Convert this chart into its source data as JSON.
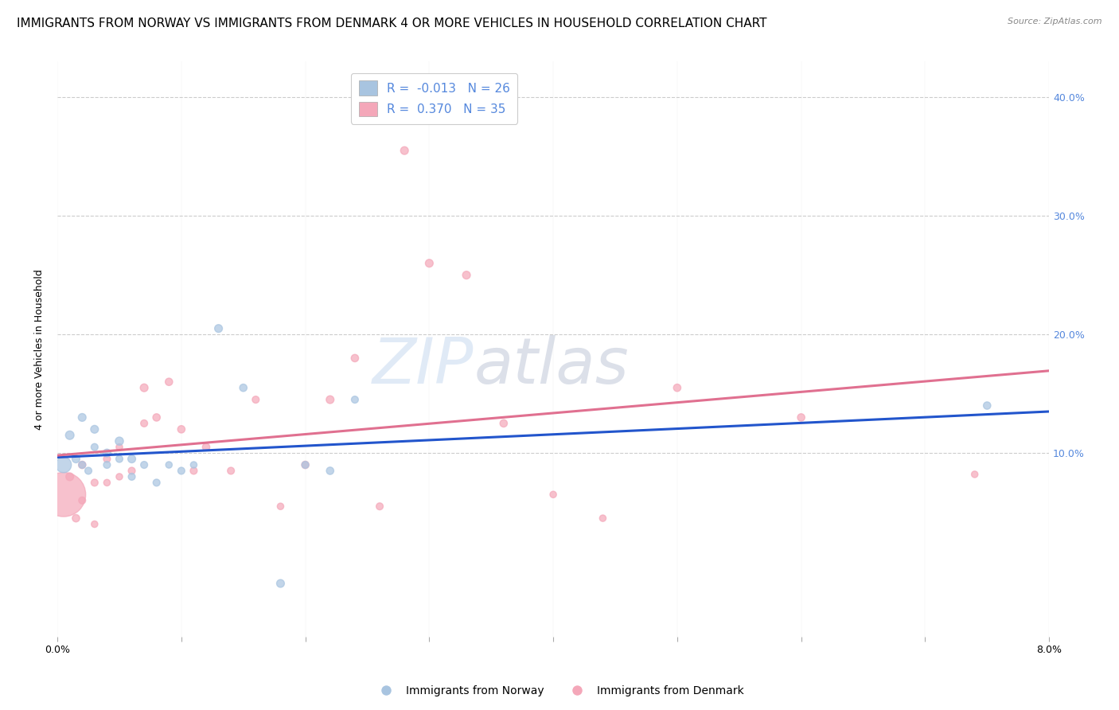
{
  "title": "IMMIGRANTS FROM NORWAY VS IMMIGRANTS FROM DENMARK 4 OR MORE VEHICLES IN HOUSEHOLD CORRELATION CHART",
  "source": "Source: ZipAtlas.com",
  "ylabel": "4 or more Vehicles in Household",
  "xlim": [
    0.0,
    0.08
  ],
  "ylim": [
    -0.055,
    0.43
  ],
  "norway_R": -0.013,
  "norway_N": 26,
  "denmark_R": 0.37,
  "denmark_N": 35,
  "norway_color": "#a8c4e0",
  "denmark_color": "#f4a7b9",
  "norway_line_color": "#2255cc",
  "denmark_line_color": "#e07090",
  "norway_x": [
    0.0005,
    0.001,
    0.0015,
    0.002,
    0.002,
    0.0025,
    0.003,
    0.003,
    0.004,
    0.004,
    0.005,
    0.005,
    0.006,
    0.006,
    0.007,
    0.008,
    0.009,
    0.01,
    0.011,
    0.013,
    0.015,
    0.018,
    0.02,
    0.022,
    0.024,
    0.075
  ],
  "norway_y": [
    0.09,
    0.115,
    0.095,
    0.13,
    0.09,
    0.085,
    0.12,
    0.105,
    0.1,
    0.09,
    0.11,
    0.095,
    0.095,
    0.08,
    0.09,
    0.075,
    0.09,
    0.085,
    0.09,
    0.205,
    0.155,
    -0.01,
    0.09,
    0.085,
    0.145,
    0.14
  ],
  "norway_size": [
    200,
    60,
    50,
    50,
    40,
    40,
    50,
    40,
    50,
    40,
    55,
    40,
    50,
    40,
    40,
    40,
    35,
    40,
    35,
    50,
    45,
    50,
    40,
    45,
    40,
    45
  ],
  "denmark_x": [
    0.0005,
    0.001,
    0.0015,
    0.002,
    0.002,
    0.003,
    0.003,
    0.004,
    0.004,
    0.005,
    0.005,
    0.006,
    0.007,
    0.007,
    0.008,
    0.009,
    0.01,
    0.011,
    0.012,
    0.014,
    0.016,
    0.018,
    0.02,
    0.022,
    0.024,
    0.026,
    0.028,
    0.03,
    0.033,
    0.036,
    0.04,
    0.044,
    0.05,
    0.06,
    0.074
  ],
  "denmark_y": [
    0.065,
    0.08,
    0.045,
    0.09,
    0.06,
    0.075,
    0.04,
    0.095,
    0.075,
    0.105,
    0.08,
    0.085,
    0.155,
    0.125,
    0.13,
    0.16,
    0.12,
    0.085,
    0.105,
    0.085,
    0.145,
    0.055,
    0.09,
    0.145,
    0.18,
    0.055,
    0.355,
    0.26,
    0.25,
    0.125,
    0.065,
    0.045,
    0.155,
    0.13,
    0.082
  ],
  "denmark_size": [
    1600,
    50,
    45,
    45,
    40,
    40,
    35,
    40,
    35,
    35,
    35,
    40,
    50,
    40,
    45,
    45,
    45,
    40,
    45,
    40,
    40,
    35,
    45,
    50,
    45,
    40,
    50,
    50,
    50,
    45,
    35,
    35,
    45,
    45,
    35
  ],
  "watermark_zip": "ZIP",
  "watermark_atlas": "atlas",
  "legend_norway": "Immigrants from Norway",
  "legend_denmark": "Immigrants from Denmark",
  "background_color": "#ffffff",
  "grid_color": "#cccccc",
  "title_fontsize": 11,
  "axis_fontsize": 9,
  "tick_fontsize": 9,
  "right_tick_color": "#5588dd"
}
